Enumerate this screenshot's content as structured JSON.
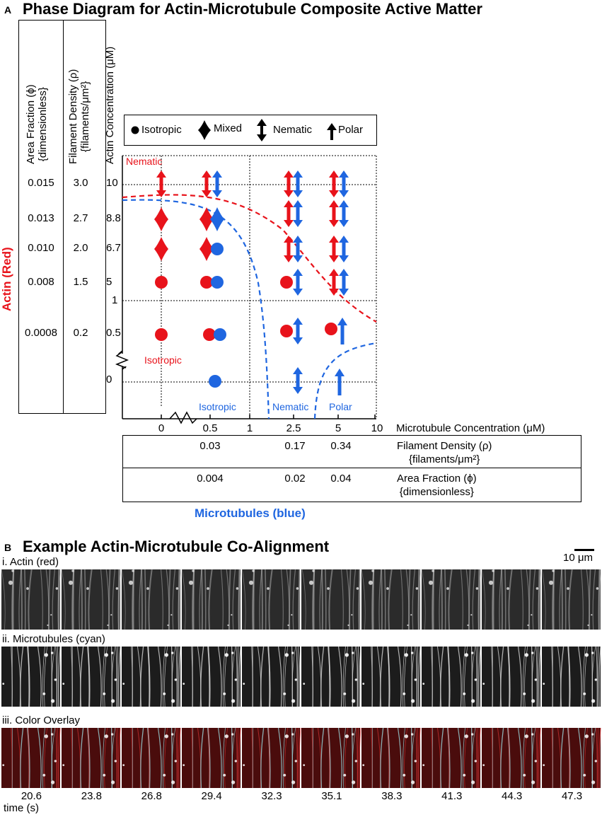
{
  "panel_a": {
    "letter": "A",
    "title": "Phase Diagram for Actin-Microtubule Composite Active Matter",
    "y_axis_group": "Actin (Red)",
    "x_axis_group": "Microtubules (blue)",
    "left_columns": [
      {
        "header": "Area Fraction (ϕ)",
        "header2": "{dimensionless}",
        "values": [
          "0.015",
          "0.013",
          "0.010",
          "0.008",
          "0.0008"
        ]
      },
      {
        "header": "Filament Density (ρ)",
        "header2": "{filaments/μm²}",
        "values": [
          "3.0",
          "2.7",
          "2.0",
          "1.5",
          "0.2"
        ]
      },
      {
        "header": "Actin Concentration (μM)",
        "values": [
          "10",
          "8.8",
          "6.7",
          "5",
          "1",
          "0.5",
          "0"
        ]
      }
    ],
    "legend": [
      {
        "label": "Isotropic",
        "icon": "circle-icon"
      },
      {
        "label": "Mixed",
        "icon": "diamond-icon"
      },
      {
        "label": "Nematic",
        "icon": "double-arrow-icon"
      },
      {
        "label": "Polar",
        "icon": "arrow-up-icon"
      }
    ],
    "region_labels": {
      "nematic_red": "Nematic",
      "isotropic_red": "Isotropic",
      "isotropic_blue": "Isotropic",
      "nematic_blue": "Nematic",
      "polar_blue": "Polar"
    },
    "x_ticks": [
      "0",
      "0.5",
      "1",
      "2.5",
      "5",
      "10"
    ],
    "x_axis_label": "Microtubule Concentration (μM)",
    "bottom_table": [
      {
        "values": [
          "0.03",
          "0.17",
          "0.34"
        ],
        "label": "Filament Density (ρ)",
        "label2": "{filaments/μm²}"
      },
      {
        "values": [
          "0.004",
          "0.02",
          "0.04"
        ],
        "label": "Area Fraction (ϕ)",
        "label2": "{dimensionless}"
      }
    ],
    "colors": {
      "actin": "#e8131b",
      "microtubule": "#1f66e0"
    }
  },
  "panel_b": {
    "letter": "B",
    "title": "Example Actin-Microtubule Co-Alignment",
    "scale_bar": "10 μm",
    "rows": [
      "i. Actin (red)",
      "ii. Microtubules (cyan)",
      "iii. Color Overlay"
    ],
    "times": [
      "20.6",
      "23.8",
      "26.8",
      "29.4",
      "32.3",
      "35.1",
      "38.3",
      "41.3",
      "44.3",
      "47.3"
    ],
    "time_label": "time (s)"
  }
}
